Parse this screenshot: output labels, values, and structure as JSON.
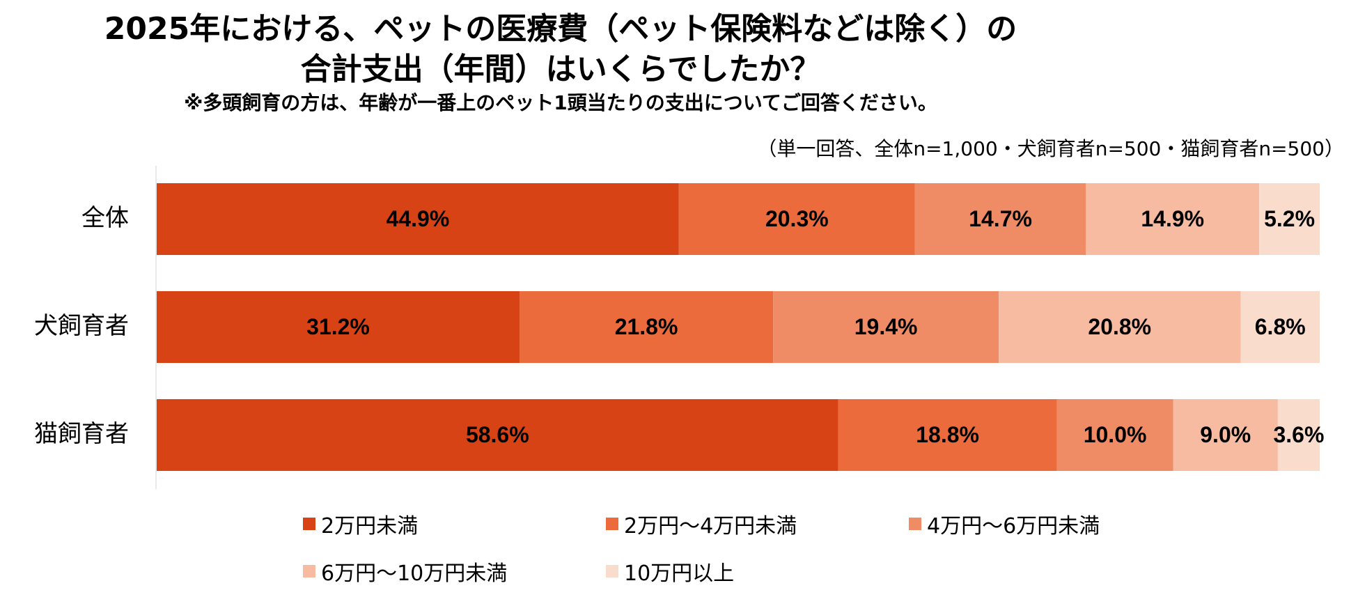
{
  "header": {
    "title_line1": "2025年における、ペットの医療費（ペット保険料などは除く）の",
    "title_line2": "合計支出（年間）はいくらでしたか？",
    "subtitle": "※多頭飼育の方は、年齢が一番上のペット1頭当たりの支出についてご回答ください。",
    "note": "（単一回答、全体n=1,000・犬飼育者n=500・猫飼育者n=500）"
  },
  "chart_data": {
    "type": "bar",
    "orientation": "horizontal",
    "stacked": true,
    "percent": true,
    "categories": [
      "全体",
      "犬飼育者",
      "猫飼育者"
    ],
    "series": [
      {
        "name": "2万円未満",
        "values": [
          44.9,
          31.2,
          58.6
        ],
        "labels": [
          "44.9%",
          "31.2%",
          "58.6%"
        ],
        "color": "#D84315"
      },
      {
        "name": "2万円～4万円未満",
        "values": [
          20.3,
          21.8,
          18.8
        ],
        "labels": [
          "20.3%",
          "21.8%",
          "18.8%"
        ],
        "color": "#EB6B3C"
      },
      {
        "name": "4万円～6万円未満",
        "values": [
          14.7,
          19.4,
          10.0
        ],
        "labels": [
          "14.7%",
          "19.4%",
          "10.0%"
        ],
        "color": "#EF8B65"
      },
      {
        "name": "6万円～10万円未満",
        "values": [
          14.9,
          20.8,
          9.0
        ],
        "labels": [
          "14.9%",
          "20.8%",
          "9.0%"
        ],
        "color": "#F6BBA0"
      },
      {
        "name": "10万円以上",
        "values": [
          5.2,
          6.8,
          3.6
        ],
        "labels": [
          "5.2%",
          "6.8%",
          "3.6%"
        ],
        "color": "#FADCCC"
      }
    ],
    "xlim": [
      0,
      100
    ],
    "grid": false,
    "legend_position": "bottom"
  }
}
